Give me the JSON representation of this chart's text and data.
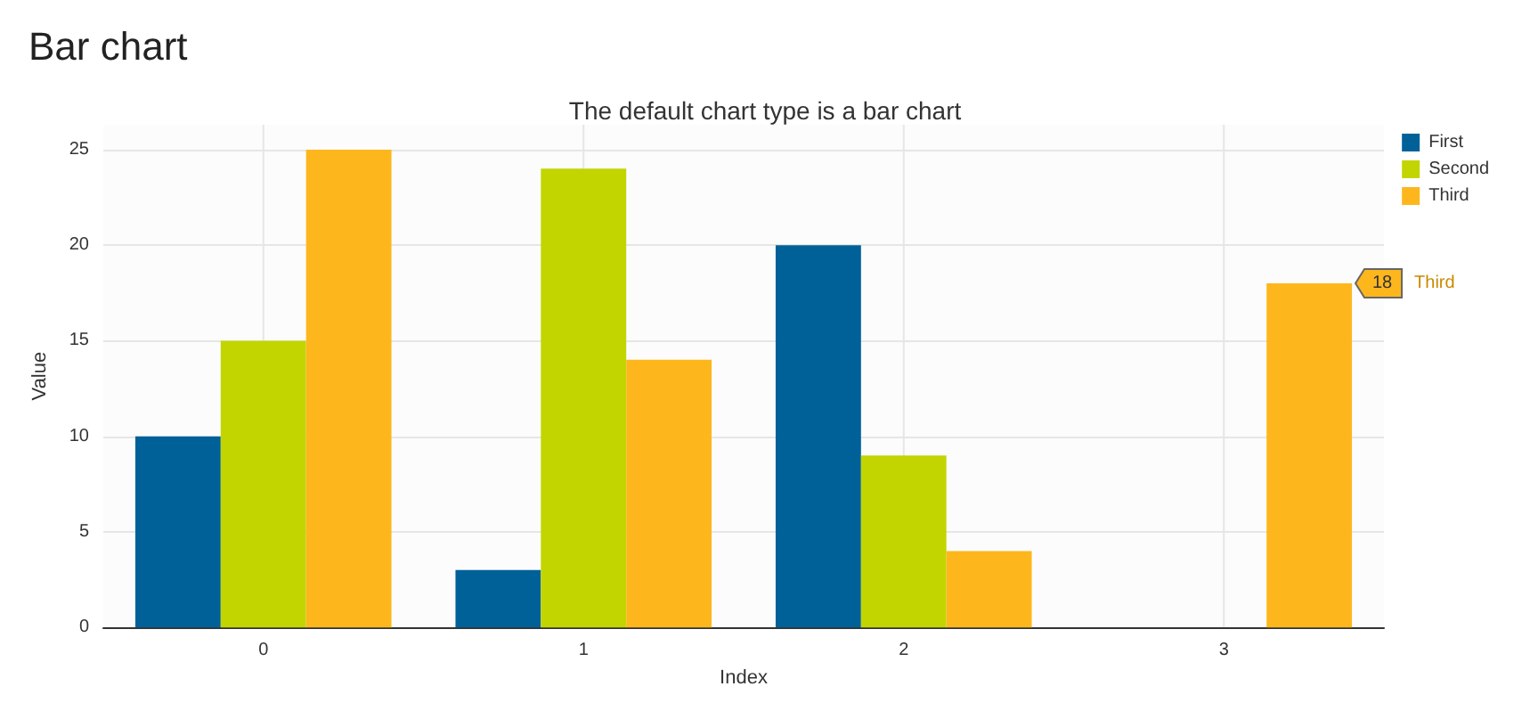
{
  "chart_data": {
    "type": "bar",
    "title": "Bar chart",
    "subtitle": "The default chart type is a bar chart",
    "xlabel": "Index",
    "ylabel": "Value",
    "categories": [
      "0",
      "1",
      "2",
      "3"
    ],
    "series": [
      {
        "name": "First",
        "color": "#006199",
        "values": [
          10,
          3,
          20,
          null
        ]
      },
      {
        "name": "Second",
        "color": "#c2d500",
        "values": [
          15,
          24,
          9,
          null
        ]
      },
      {
        "name": "Third",
        "color": "#fdb71d",
        "values": [
          25,
          14,
          4,
          18
        ]
      }
    ],
    "ylim": [
      0,
      26.3
    ],
    "yticks": [
      0,
      5,
      10,
      15,
      20,
      25
    ],
    "grid": true,
    "legend": "top right",
    "annotations": [
      "18",
      "Third"
    ]
  }
}
